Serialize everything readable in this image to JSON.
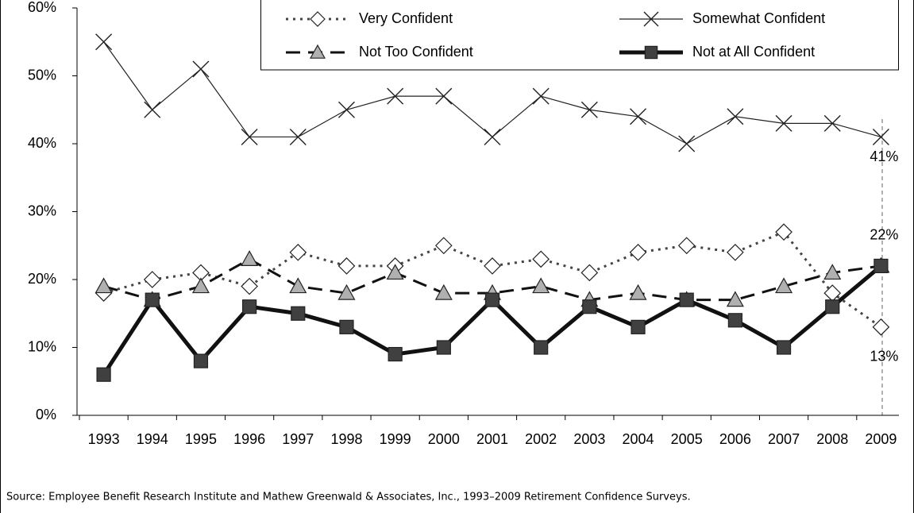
{
  "chart_data": {
    "type": "line",
    "categories": [
      "1993",
      "1994",
      "1995",
      "1996",
      "1997",
      "1998",
      "1999",
      "2000",
      "2001",
      "2002",
      "2003",
      "2004",
      "2005",
      "2006",
      "2007",
      "2008",
      "2009"
    ],
    "series": [
      {
        "name": "Very Confident",
        "color": "#444444",
        "line_style": "dotted",
        "marker": "diamond",
        "marker_fill": "#ffffff",
        "values": [
          18,
          20,
          21,
          19,
          24,
          22,
          22,
          25,
          22,
          23,
          21,
          24,
          25,
          24,
          27,
          18,
          13
        ],
        "value_labels": [
          null,
          null,
          null,
          null,
          null,
          null,
          null,
          null,
          null,
          null,
          null,
          null,
          null,
          null,
          null,
          null,
          "13%"
        ]
      },
      {
        "name": "Somewhat Confident",
        "color": "#222222",
        "line_style": "solid-thin",
        "marker": "x",
        "marker_fill": "none",
        "values": [
          55,
          45,
          51,
          41,
          41,
          45,
          47,
          47,
          41,
          47,
          45,
          44,
          40,
          44,
          43,
          43,
          41
        ],
        "value_labels": [
          null,
          null,
          null,
          null,
          null,
          null,
          null,
          null,
          null,
          null,
          null,
          null,
          null,
          null,
          null,
          null,
          "41%"
        ]
      },
      {
        "name": "Not Too Confident",
        "color": "#111111",
        "line_style": "dashed",
        "marker": "triangle",
        "marker_fill": "#b0b0b0",
        "values": [
          19,
          17,
          19,
          23,
          19,
          18,
          21,
          18,
          18,
          19,
          17,
          18,
          17,
          17,
          19,
          21,
          22
        ],
        "value_labels": [
          null,
          null,
          null,
          null,
          null,
          null,
          null,
          null,
          null,
          null,
          null,
          null,
          null,
          null,
          null,
          null,
          "22%"
        ]
      },
      {
        "name": "Not at All Confident",
        "color": "#111111",
        "line_style": "solid-thick",
        "marker": "square",
        "marker_fill": "#404040",
        "values": [
          6,
          17,
          8,
          16,
          15,
          13,
          9,
          10,
          17,
          10,
          16,
          13,
          17,
          14,
          10,
          16,
          22
        ]
      }
    ],
    "ylim": [
      0,
      60
    ],
    "yticks": [
      {
        "value": 0,
        "label": "0%"
      },
      {
        "value": 10,
        "label": "10%"
      },
      {
        "value": 20,
        "label": "20%"
      },
      {
        "value": 30,
        "label": "30%"
      },
      {
        "value": 40,
        "label": "40%"
      },
      {
        "value": 50,
        "label": "50%"
      },
      {
        "value": 60,
        "label": "60%"
      }
    ],
    "source": "Source:  Employee Benefit Research Institute and Mathew Greenwald & Associates, Inc., 1993–2009 Retirement Confidence Surveys."
  }
}
